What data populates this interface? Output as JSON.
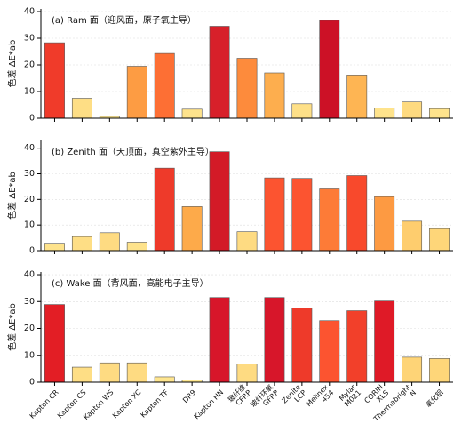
{
  "chart_data": [
    {
      "type": "bar",
      "title": "(a)  Ram 面（迎风面，原子氧主导）",
      "ylabel": "色差 ΔE*ab",
      "values": [
        28.3,
        7.5,
        0.7,
        19.5,
        24.3,
        3.4,
        34.5,
        22.5,
        17,
        5.4,
        36.7,
        16.2,
        3.9,
        6.1,
        3.6
      ],
      "colors": [
        "#f03b2a",
        "#fede85",
        "#ffe790",
        "#fd9c43",
        "#fd6f34",
        "#fee38c",
        "#d7202a",
        "#fd8b3c",
        "#fdae4e",
        "#fee088",
        "#cc1126",
        "#feb553",
        "#fee38c",
        "#feda80",
        "#fee38c"
      ],
      "ylim": [
        0,
        41
      ],
      "yticks": [
        0,
        10,
        20,
        30,
        40
      ],
      "grid": true
    },
    {
      "type": "bar",
      "title": "(b)  Zenith 面（天顶面，真空紫外主导）",
      "ylabel": "色差 ΔE*ab",
      "values": [
        2.9,
        5.5,
        7.0,
        3.3,
        32.2,
        17.2,
        38.6,
        7.4,
        28.4,
        28.2,
        24.1,
        29.3,
        21.1,
        11.5,
        8.6
      ],
      "colors": [
        "#fee38c",
        "#fede85",
        "#fedb82",
        "#fee38c",
        "#ee3a2a",
        "#fdaa4a",
        "#d31a27",
        "#fedb82",
        "#fc5430",
        "#fc5430",
        "#fd7b37",
        "#f8492c",
        "#fd9a42",
        "#fecd6e",
        "#fed679"
      ],
      "ylim": [
        0,
        43
      ],
      "yticks": [
        0,
        10,
        20,
        30,
        40
      ],
      "grid": true
    },
    {
      "type": "bar",
      "title": "(c)  Wake 面（背风面，高能电子主导）",
      "ylabel": "色差 ΔE*ab",
      "categories": [
        "Kapton CR",
        "Kapton CS",
        "Kapton WS",
        "Kapton XC",
        "Kapton TF",
        "DR9",
        "Kapton HN",
        "玻纤维\nCFRP",
        "玻纤环氧\nGFRP",
        "Zenite\nLCP",
        "Melinex\n454",
        "Mylar\nM021",
        "CORIN\nXLS",
        "Thermabright\nN",
        "氧化铝"
      ],
      "values": [
        28.9,
        5.6,
        7.2,
        7.2,
        2.0,
        0.8,
        31.5,
        6.8,
        31.5,
        27.6,
        22.9,
        26.6,
        30.2,
        9.3,
        8.8
      ],
      "colors": [
        "#e31e25",
        "#fede85",
        "#fedb82",
        "#fedb82",
        "#fee58e",
        "#fee790",
        "#d7162a",
        "#fedb82",
        "#d7162a",
        "#ee3a2a",
        "#fc5430",
        "#f2402a",
        "#df1a27",
        "#fed477",
        "#fed679"
      ],
      "ylim": [
        0,
        41
      ],
      "yticks": [
        0,
        10,
        20,
        30,
        40
      ],
      "grid": true
    }
  ]
}
